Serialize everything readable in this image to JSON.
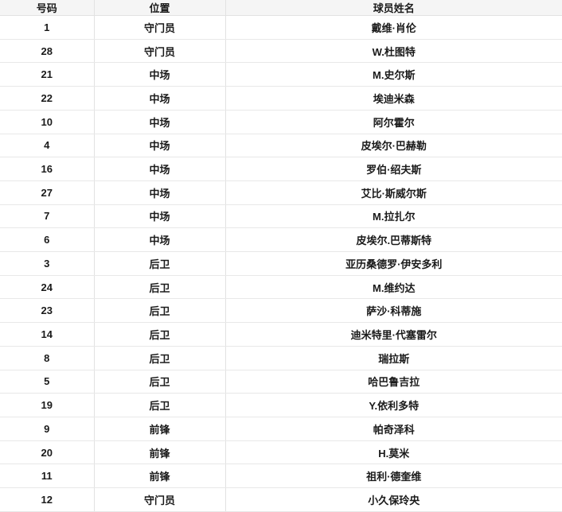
{
  "colors": {
    "header_bg": "#f5f5f5",
    "border": "#e2e2e2",
    "text": "#1a1a1a"
  },
  "table": {
    "columns": [
      {
        "key": "number",
        "label": "号码"
      },
      {
        "key": "position",
        "label": "位置"
      },
      {
        "key": "name",
        "label": "球员姓名"
      }
    ],
    "rows": [
      {
        "number": "1",
        "position": "守门员",
        "name": "戴维·肖伦"
      },
      {
        "number": "28",
        "position": "守门员",
        "name": "W.杜图特"
      },
      {
        "number": "21",
        "position": "中场",
        "name": "M.史尔斯"
      },
      {
        "number": "22",
        "position": "中场",
        "name": "埃迪米森"
      },
      {
        "number": "10",
        "position": "中场",
        "name": "阿尔霍尔"
      },
      {
        "number": "4",
        "position": "中场",
        "name": "皮埃尔·巴赫勒"
      },
      {
        "number": "16",
        "position": "中场",
        "name": "罗伯·绍夫斯"
      },
      {
        "number": "27",
        "position": "中场",
        "name": "艾比·斯威尔斯"
      },
      {
        "number": "7",
        "position": "中场",
        "name": "M.拉扎尔"
      },
      {
        "number": "6",
        "position": "中场",
        "name": "皮埃尔.巴蒂斯特"
      },
      {
        "number": "3",
        "position": "后卫",
        "name": "亚历桑德罗·伊安多利"
      },
      {
        "number": "24",
        "position": "后卫",
        "name": "M.维约达"
      },
      {
        "number": "23",
        "position": "后卫",
        "name": "萨沙·科蒂施"
      },
      {
        "number": "14",
        "position": "后卫",
        "name": "迪米特里·代塞雷尔"
      },
      {
        "number": "8",
        "position": "后卫",
        "name": "瑞拉斯"
      },
      {
        "number": "5",
        "position": "后卫",
        "name": "哈巴鲁吉拉"
      },
      {
        "number": "19",
        "position": "后卫",
        "name": "Y.依利多特"
      },
      {
        "number": "9",
        "position": "前锋",
        "name": "帕奇泽科"
      },
      {
        "number": "20",
        "position": "前锋",
        "name": "H.莫米"
      },
      {
        "number": "11",
        "position": "前锋",
        "name": "祖利·德奎维"
      },
      {
        "number": "12",
        "position": "守门员",
        "name": "小久保玲央"
      }
    ]
  }
}
